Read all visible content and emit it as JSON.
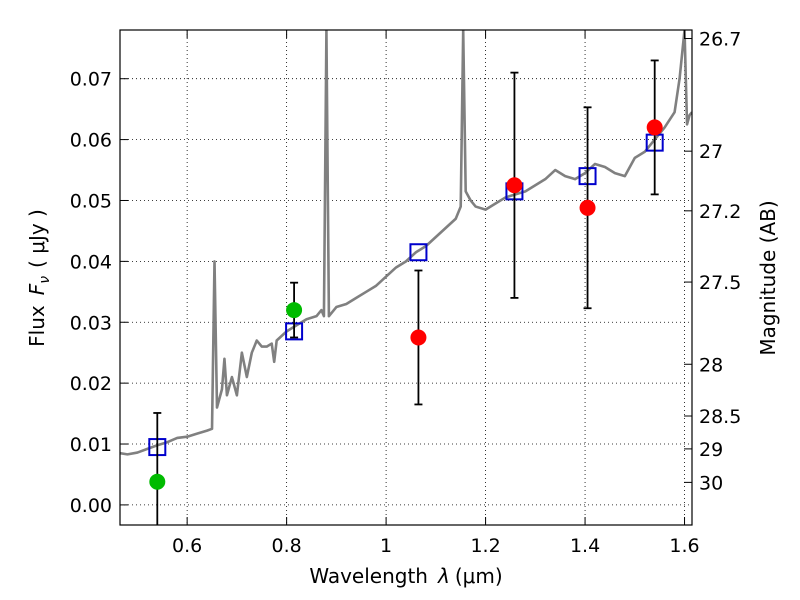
{
  "chart_data": {
    "type": "scatter",
    "title": "",
    "xlabel": "Wavelength",
    "xlabel_symbol": "λ",
    "xlabel_unit": "(μm)",
    "ylabel": "Flux",
    "ylabel_symbol": "F",
    "ylabel_subscript": "ν",
    "ylabel_unit": "( μJy )",
    "y2label": "Magnitude (AB)",
    "xlim": [
      0.465,
      1.615
    ],
    "ylim": [
      -0.0033,
      0.078
    ],
    "grid": true,
    "x_ticks": [
      0.6,
      0.8,
      1.0,
      1.2,
      1.4,
      1.6
    ],
    "x_tick_labels": [
      "0.6",
      "0.8",
      "1",
      "1.2",
      "1.4",
      "1.6"
    ],
    "y_ticks": [
      0.0,
      0.01,
      0.02,
      0.03,
      0.04,
      0.05,
      0.06,
      0.07
    ],
    "y_tick_labels": [
      "0.00",
      "0.01",
      "0.02",
      "0.03",
      "0.04",
      "0.05",
      "0.06",
      "0.07"
    ],
    "magnitude_ticks": [
      {
        "label": "26.7",
        "flux": 0.0766
      },
      {
        "label": "27",
        "flux": 0.0581
      },
      {
        "label": "27.2",
        "flux": 0.0483
      },
      {
        "label": "27.5",
        "flux": 0.0366
      },
      {
        "label": "28",
        "flux": 0.0231
      },
      {
        "label": "28.5",
        "flux": 0.0146
      },
      {
        "label": "29",
        "flux": 0.0092
      },
      {
        "label": "30",
        "flux": 0.0037
      }
    ],
    "colors": {
      "spectrum": "#808080",
      "model_points": "#0000cc",
      "green_points": "#00bb00",
      "red_points": "#ff0000",
      "error_bars": "#000000"
    },
    "series": [
      {
        "name": "model spectrum",
        "kind": "line",
        "points": [
          [
            0.465,
            0.0085
          ],
          [
            0.48,
            0.0083
          ],
          [
            0.5,
            0.0086
          ],
          [
            0.52,
            0.0092
          ],
          [
            0.54,
            0.0098
          ],
          [
            0.56,
            0.0103
          ],
          [
            0.58,
            0.011
          ],
          [
            0.6,
            0.0112
          ],
          [
            0.62,
            0.0117
          ],
          [
            0.64,
            0.0122
          ],
          [
            0.65,
            0.0125
          ],
          [
            0.655,
            0.04
          ],
          [
            0.66,
            0.016
          ],
          [
            0.67,
            0.019
          ],
          [
            0.675,
            0.024
          ],
          [
            0.68,
            0.018
          ],
          [
            0.69,
            0.021
          ],
          [
            0.7,
            0.018
          ],
          [
            0.71,
            0.025
          ],
          [
            0.72,
            0.021
          ],
          [
            0.73,
            0.025
          ],
          [
            0.74,
            0.027
          ],
          [
            0.75,
            0.026
          ],
          [
            0.76,
            0.026
          ],
          [
            0.77,
            0.0265
          ],
          [
            0.775,
            0.0235
          ],
          [
            0.78,
            0.027
          ],
          [
            0.8,
            0.0285
          ],
          [
            0.82,
            0.0295
          ],
          [
            0.84,
            0.0305
          ],
          [
            0.86,
            0.031
          ],
          [
            0.87,
            0.032
          ],
          [
            0.875,
            0.031
          ],
          [
            0.88,
            0.078
          ],
          [
            0.885,
            0.031
          ],
          [
            0.9,
            0.0325
          ],
          [
            0.92,
            0.033
          ],
          [
            0.94,
            0.034
          ],
          [
            0.96,
            0.035
          ],
          [
            0.98,
            0.036
          ],
          [
            1.0,
            0.0375
          ],
          [
            1.02,
            0.039
          ],
          [
            1.04,
            0.04
          ],
          [
            1.06,
            0.0415
          ],
          [
            1.08,
            0.0425
          ],
          [
            1.1,
            0.044
          ],
          [
            1.12,
            0.0455
          ],
          [
            1.14,
            0.047
          ],
          [
            1.15,
            0.049
          ],
          [
            1.155,
            0.078
          ],
          [
            1.16,
            0.0515
          ],
          [
            1.17,
            0.05
          ],
          [
            1.18,
            0.049
          ],
          [
            1.2,
            0.0485
          ],
          [
            1.22,
            0.0495
          ],
          [
            1.24,
            0.0505
          ],
          [
            1.26,
            0.051
          ],
          [
            1.28,
            0.0515
          ],
          [
            1.3,
            0.0525
          ],
          [
            1.32,
            0.0535
          ],
          [
            1.34,
            0.055
          ],
          [
            1.36,
            0.054
          ],
          [
            1.38,
            0.0535
          ],
          [
            1.4,
            0.0545
          ],
          [
            1.42,
            0.056
          ],
          [
            1.44,
            0.0555
          ],
          [
            1.46,
            0.0545
          ],
          [
            1.48,
            0.054
          ],
          [
            1.5,
            0.057
          ],
          [
            1.52,
            0.058
          ],
          [
            1.54,
            0.06
          ],
          [
            1.56,
            0.062
          ],
          [
            1.58,
            0.0645
          ],
          [
            1.59,
            0.07
          ],
          [
            1.6,
            0.078
          ],
          [
            1.605,
            0.0625
          ],
          [
            1.61,
            0.064
          ],
          [
            1.615,
            0.0645
          ]
        ]
      },
      {
        "name": "model photometry",
        "kind": "open-square",
        "points": [
          [
            0.54,
            0.0095
          ],
          [
            0.815,
            0.0285
          ],
          [
            1.065,
            0.0415
          ],
          [
            1.258,
            0.0515
          ],
          [
            1.405,
            0.054
          ],
          [
            1.54,
            0.0595
          ]
        ]
      },
      {
        "name": "observed (green)",
        "kind": "filled-circle",
        "points": [
          [
            0.54,
            0.0038,
            0.0113
          ],
          [
            0.815,
            0.032,
            0.0045
          ]
        ]
      },
      {
        "name": "observed (red)",
        "kind": "filled-circle",
        "points": [
          [
            1.065,
            0.0275,
            0.011
          ],
          [
            1.258,
            0.0525,
            0.0185
          ],
          [
            1.405,
            0.0488,
            0.0165
          ],
          [
            1.54,
            0.062,
            0.011
          ]
        ]
      }
    ]
  }
}
